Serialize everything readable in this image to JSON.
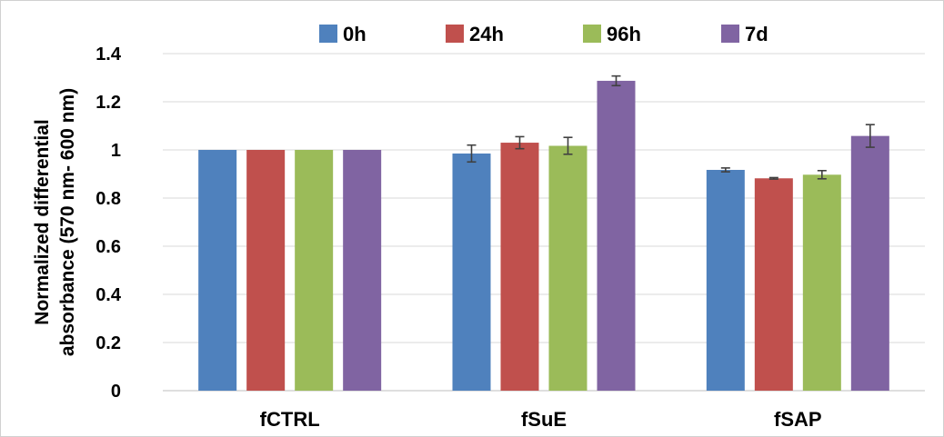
{
  "chart_data": {
    "type": "bar",
    "title": "",
    "xlabel": "",
    "ylabel_lines": [
      "Normalized differential",
      "absorbance (570 nm- 600 nm)"
    ],
    "categories": [
      "fCTRL",
      "fSuE",
      "fSAP"
    ],
    "ylim": [
      0,
      1.4
    ],
    "yticks": [
      0,
      0.2,
      0.4,
      0.6,
      0.8,
      1,
      1.2,
      1.4
    ],
    "ytick_labels": [
      "0",
      "0.2",
      "0.4",
      "0.6",
      "0.8",
      "1",
      "1.2",
      "1.4"
    ],
    "grid": true,
    "legend_position": "top",
    "series": [
      {
        "name": "0h",
        "color": "#4f81bd",
        "values": [
          1.0,
          0.985,
          0.917
        ],
        "errors": [
          0.0,
          0.035,
          0.008
        ]
      },
      {
        "name": "24h",
        "color": "#c0504d",
        "values": [
          1.0,
          1.03,
          0.882
        ],
        "errors": [
          0.0,
          0.025,
          0.003
        ]
      },
      {
        "name": "96h",
        "color": "#9bbb59",
        "values": [
          1.0,
          1.017,
          0.897
        ],
        "errors": [
          0.0,
          0.035,
          0.017
        ]
      },
      {
        "name": "7d",
        "color": "#8064a2",
        "values": [
          1.0,
          1.287,
          1.058
        ],
        "errors": [
          0.0,
          0.02,
          0.047
        ]
      }
    ]
  }
}
